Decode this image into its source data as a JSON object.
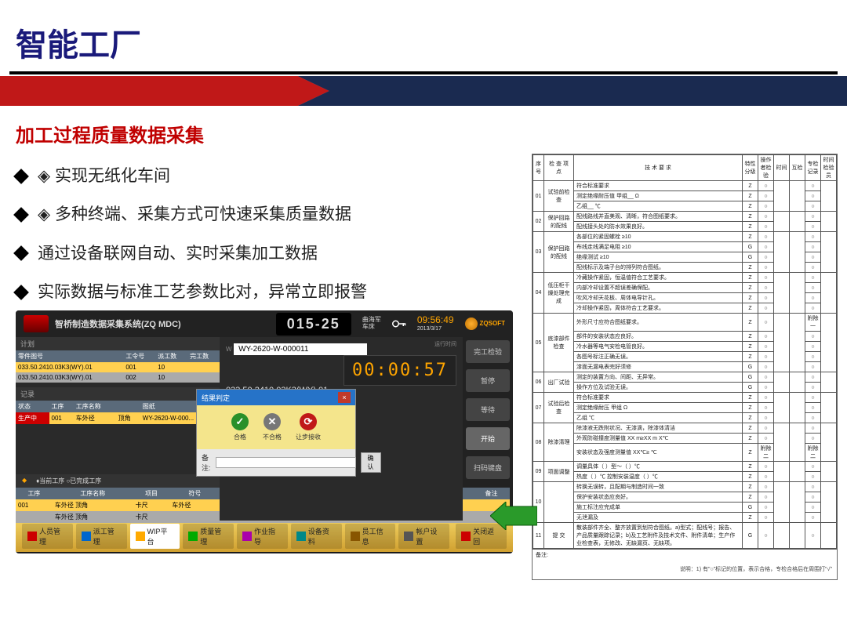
{
  "main_title": "智能工厂",
  "sub_title": "加工过程质量数据采集",
  "bullets": [
    "◈ 实现无纸化车间",
    "◈ 多种终端、采集方式可快速采集质量数据",
    "通过设备联网自动、实时采集加工数据",
    "实际数据与标准工艺参数比对，异常立即报警"
  ],
  "mdc": {
    "title": "智桥制造数据采集系统(ZQ MDC)",
    "station": "015-25",
    "user_label": "曲海军",
    "role_label": "车床",
    "time": "09:56:49",
    "date": "2013/3/17",
    "brand": "ZQSOFT",
    "plan_label": "计划",
    "plan_headers": [
      "零件图号",
      "工令号",
      "派工数",
      "完工数"
    ],
    "plan_rows": [
      [
        "033.50.2410.03K3(WY).01",
        "001",
        "10",
        ""
      ],
      [
        "033.50.2410.03K3(WY).01",
        "002",
        "10",
        ""
      ]
    ],
    "rec_label": "记录",
    "rec_headers": [
      "状态",
      "工序",
      "工序名称",
      "图纸"
    ],
    "rec_rows": [
      [
        "生产中",
        "001",
        "车外径",
        "顶角",
        "WY-2620-W-000..."
      ]
    ],
    "input": "WY-2620-W-000011",
    "part": "033.50.2410.03K3(WY).01",
    "part_suffix": "3(WY)",
    "timer": "00:00:57",
    "timer_label": "运行时间",
    "side_btns": [
      "完工检验",
      "暂停",
      "等待",
      "开始",
      "扫码键盘"
    ],
    "proc_label": "♦当前工序    ○已完成工序",
    "data_headers": [
      "工序",
      "工序名称",
      "项目",
      "符号",
      "标准值",
      "上差",
      "下差",
      "符号",
      "实测值",
      "结论",
      "备注"
    ],
    "data_rows": [
      [
        "001",
        "车外径  顶角",
        "卡尺",
        "车外径",
        "Φ",
        "2620",
        "-0.6",
        "-0.8",
        "Φ",
        "2620",
        "",
        ""
      ],
      [
        "",
        "车外径  顶角",
        "卡尺",
        "",
        "",
        "C3",
        "",
        "",
        "",
        "",
        "",
        ""
      ]
    ],
    "bottom_btns": [
      "人员管理",
      "派工管理",
      "WIP平台",
      "质量管理",
      "作业指导",
      "设备资料",
      "员工信息",
      "帐户设置"
    ],
    "bottom_close": "关闭返回",
    "dialog": {
      "title": "结果判定",
      "close": "×",
      "ok": "合格",
      "ng": "不合格",
      "bypass": "让步接收",
      "note_label": "备注:",
      "confirm": "确认"
    }
  },
  "paper": {
    "headers": [
      "序号",
      "检 查 项 点",
      "技  术  要  求",
      "特性分级",
      "操作者检验",
      "时间",
      "工检",
      "互检",
      "专检记录",
      "时间检验员"
    ],
    "rows": [
      {
        "idx": "01",
        "pt": "试验前检查",
        "req": [
          "符合标准要求",
          "测定绝缘耐压值   甲组__  Ω",
          "                              乙组__  ℃"
        ],
        "g": [
          "Z",
          "Z",
          "Z"
        ],
        "op": [
          "○",
          "○",
          "○"
        ],
        "sp": [
          "○",
          "○",
          "○"
        ]
      },
      {
        "idx": "02",
        "pt": "保护回路的配线",
        "req": [
          "配线路线并直美观、清晰，符合图纸要求。",
          "配线接头处的防水效果良好。"
        ],
        "g": [
          "Z",
          "Z"
        ],
        "op": [
          "○",
          "○"
        ],
        "sp": [
          "○",
          "○"
        ]
      },
      {
        "idx": "03",
        "pt": "保护回路的配线",
        "req": [
          "各部位的紧固螺栓        ≥10",
          "布线走线满足电阻        ≥10",
          "绝缘测试              ≥10",
          "配线标示及端子台的排列符合图纸。"
        ],
        "g": [
          "Z",
          "G",
          "G",
          "Z"
        ],
        "op": [
          "○",
          "○",
          "○",
          "○"
        ],
        "sp": [
          "○",
          "○",
          "○",
          "○"
        ]
      },
      {
        "idx": "04",
        "pt": "低压柜干燥处理完成",
        "req": [
          "冷藏操作紧固，恒温值符合工艺要求。",
          "内部冷却设置不超误差确保配。",
          "吹风冷却天花板、周体电导针孔。",
          "冷却操作紧固，周体符合工艺要求。"
        ],
        "g": [
          "Z",
          "Z",
          "Z",
          "Z"
        ],
        "op": [
          "○",
          "○",
          "○",
          "○"
        ],
        "sp": [
          "○",
          "○",
          "○",
          "○"
        ]
      },
      {
        "idx": "05",
        "pt": "底漆部件检查",
        "req": [
          "外形尺寸应符合图纸要求。",
          "部件的安装状态应良好。",
          "冷水器等电气安检电管良好。",
          "各图号标注正确无误。",
          "漆面无漏电表完好须修"
        ],
        "g": [
          "Z",
          "Z",
          "Z",
          "Z",
          "G"
        ],
        "op": [
          "○",
          "○",
          "○",
          "○",
          "○"
        ],
        "sp": [
          "附除一",
          "○",
          "○",
          "○",
          "○"
        ]
      },
      {
        "idx": "06",
        "pt": "出厂试验",
        "req": [
          "测定的装置方向、间距、无异常。",
          "操作方位及试验无误。"
        ],
        "g": [
          "G",
          "G"
        ],
        "op": [
          "○",
          "○"
        ],
        "sp": [
          "○",
          "○"
        ]
      },
      {
        "idx": "07",
        "pt": "试验后检查",
        "req": [
          "符合标准要求",
          "测定绝缘耐压    甲组    Ω",
          "                  乙组     ℃"
        ],
        "g": [
          "Z",
          "Z",
          "Z"
        ],
        "op": [
          "○",
          "○",
          "○"
        ],
        "sp": [
          "○",
          "○",
          "○"
        ]
      },
      {
        "idx": "08",
        "pt": "除漆清理",
        "req": [
          "除漆液无跌附状况、无漆滴，除漆体清洁",
          "外观防碰撞度测量值 XX m≥XX m X℃",
          "安装状态及强度测量值 XX℃≥           ℃"
        ],
        "g": [
          "Z",
          "Z",
          "Z"
        ],
        "op": [
          "○",
          "○",
          "附除二"
        ],
        "sp": [
          "○",
          "○",
          "附除二"
        ]
      },
      {
        "idx": "09",
        "pt": "项面调整",
        "req": [
          "调量具体（    ）型～（   ）℃",
          "热度（ ）℃  控制安装温度（   ）℃"
        ],
        "g": [
          "Z",
          "Z"
        ],
        "op": [
          "○",
          "○"
        ],
        "sp": [
          "○",
          "○"
        ]
      },
      {
        "idx": "10",
        "pt": "",
        "req": [
          "转换无误转，且配期与制造时间一致",
          "保护安装状态应良好。",
          "施工标注应完成单",
          "无泄漏及"
        ],
        "g": [
          "Z",
          "Z",
          "G",
          "Z"
        ],
        "op": [
          "○",
          "○",
          "○",
          "○"
        ],
        "sp": [
          "○",
          "○",
          "○",
          "○"
        ]
      },
      {
        "idx": "11",
        "pt": "提 交",
        "req": [
          "散装部件齐全、整齐放置到划符合图纸。a)型式；配线号；报告、产品质量跟踪记录；b)及工艺附件及技术文件、附件清单；生产作业检查表，无修改、无缺漏页、无缺项。"
        ],
        "g": [
          "G"
        ],
        "op": [
          "○"
        ],
        "sp": [
          "○"
        ]
      }
    ],
    "foot_label": "备注:",
    "note": "说明：1) 有\"○\"标记的位置，表示合格，专检合格后在周围打\"√\""
  }
}
